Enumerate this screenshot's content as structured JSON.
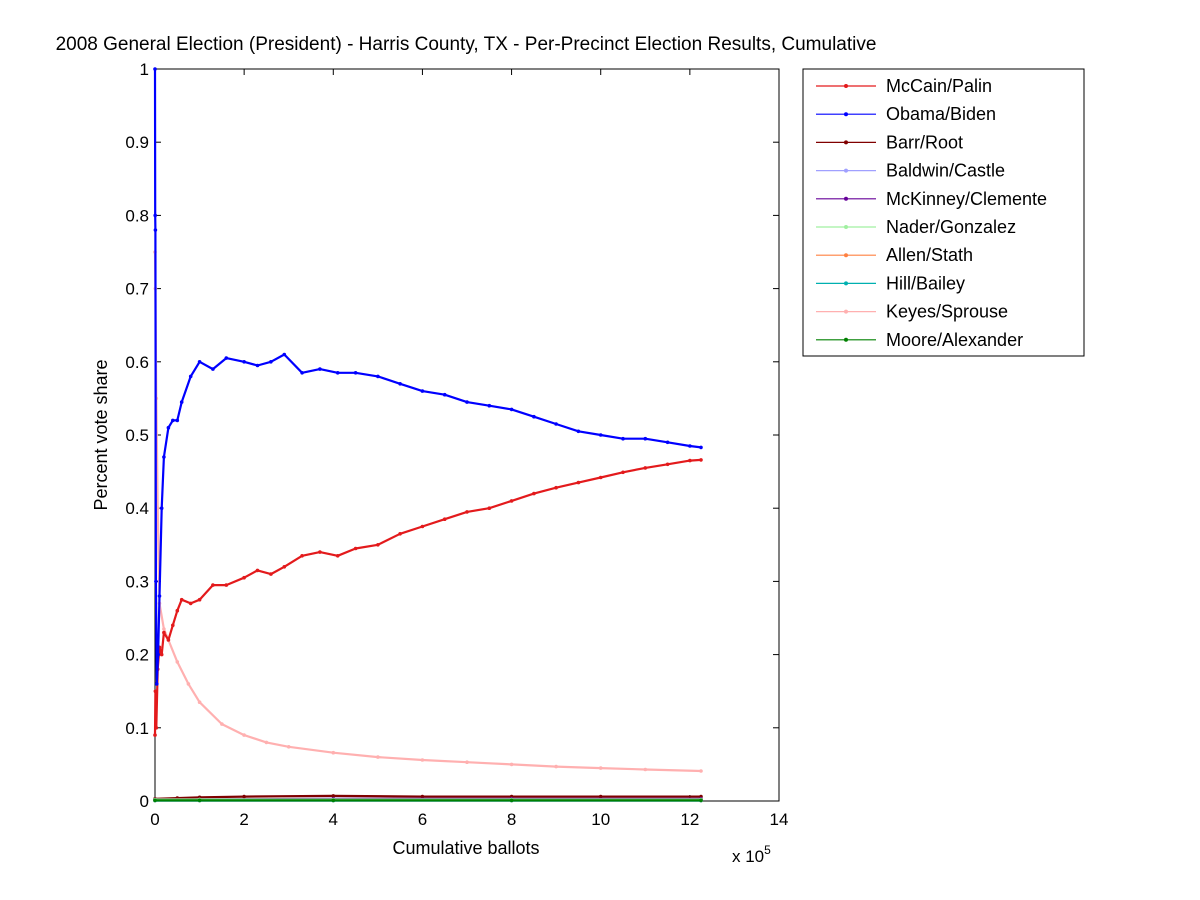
{
  "chart_data": {
    "type": "line",
    "title": "2008 General Election (President) - Harris County, TX - Per-Precinct Election Results, Cumulative",
    "xlabel": "Cumulative ballots",
    "ylabel": "Percent vote share",
    "x_exponent_label": "x 10",
    "x_exponent_power": "5",
    "xlim": [
      0,
      14
    ],
    "ylim": [
      0,
      1
    ],
    "x_ticks": [
      0,
      2,
      4,
      6,
      8,
      10,
      12,
      14
    ],
    "y_ticks": [
      0,
      0.1,
      0.2,
      0.3,
      0.4,
      0.5,
      0.6,
      0.7,
      0.8,
      0.9,
      1
    ],
    "x_tick_labels": [
      "0",
      "2",
      "4",
      "6",
      "8",
      "10",
      "12",
      "14"
    ],
    "y_tick_labels": [
      "0",
      "0.1",
      "0.2",
      "0.3",
      "0.4",
      "0.5",
      "0.6",
      "0.7",
      "0.8",
      "0.9",
      "1"
    ],
    "grid": false,
    "legend_position": "top-right outside",
    "series": [
      {
        "name": "McCain/Palin",
        "color": "#e31a1c",
        "x": [
          0,
          0.01,
          0.03,
          0.06,
          0.1,
          0.15,
          0.2,
          0.3,
          0.4,
          0.5,
          0.6,
          0.8,
          1.0,
          1.3,
          1.6,
          2.0,
          2.3,
          2.6,
          2.9,
          3.3,
          3.7,
          4.1,
          4.5,
          5.0,
          5.5,
          6.0,
          6.5,
          7.0,
          7.5,
          8.0,
          8.5,
          9.0,
          9.5,
          10.0,
          10.5,
          11.0,
          11.5,
          12.0,
          12.25
        ],
        "y": [
          0.09,
          0.15,
          0.1,
          0.18,
          0.21,
          0.2,
          0.23,
          0.22,
          0.24,
          0.26,
          0.275,
          0.27,
          0.275,
          0.295,
          0.295,
          0.305,
          0.315,
          0.31,
          0.32,
          0.335,
          0.34,
          0.335,
          0.345,
          0.35,
          0.365,
          0.375,
          0.385,
          0.395,
          0.4,
          0.41,
          0.42,
          0.428,
          0.435,
          0.442,
          0.449,
          0.455,
          0.46,
          0.465,
          0.466
        ]
      },
      {
        "name": "Obama/Biden",
        "color": "#0000ff",
        "x": [
          0,
          0.005,
          0.01,
          0.02,
          0.04,
          0.07,
          0.1,
          0.15,
          0.2,
          0.3,
          0.4,
          0.5,
          0.6,
          0.8,
          1.0,
          1.3,
          1.6,
          2.0,
          2.3,
          2.6,
          2.9,
          3.3,
          3.7,
          4.1,
          4.5,
          5.0,
          5.5,
          6.0,
          6.5,
          7.0,
          7.5,
          8.0,
          8.5,
          9.0,
          9.5,
          10.0,
          10.5,
          11.0,
          11.5,
          12.0,
          12.25
        ],
        "y": [
          1.0,
          0.8,
          0.78,
          0.3,
          0.16,
          0.2,
          0.28,
          0.4,
          0.47,
          0.51,
          0.52,
          0.52,
          0.545,
          0.58,
          0.6,
          0.59,
          0.605,
          0.6,
          0.595,
          0.6,
          0.61,
          0.585,
          0.59,
          0.585,
          0.585,
          0.58,
          0.57,
          0.56,
          0.555,
          0.545,
          0.54,
          0.535,
          0.525,
          0.515,
          0.505,
          0.5,
          0.495,
          0.495,
          0.49,
          0.485,
          0.483
        ]
      },
      {
        "name": "Barr/Root",
        "color": "#800000",
        "x": [
          0,
          0.5,
          1,
          2,
          4,
          6,
          8,
          10,
          12.25
        ],
        "y": [
          0.003,
          0.004,
          0.005,
          0.006,
          0.007,
          0.006,
          0.006,
          0.006,
          0.006
        ]
      },
      {
        "name": "Baldwin/Castle",
        "color": "#a0a0ff",
        "x": [
          0,
          1,
          4,
          8,
          12.25
        ],
        "y": [
          0.001,
          0.002,
          0.002,
          0.002,
          0.002
        ]
      },
      {
        "name": "McKinney/Clemente",
        "color": "#660099",
        "x": [
          0,
          1,
          4,
          8,
          12.25
        ],
        "y": [
          0.002,
          0.002,
          0.003,
          0.003,
          0.003
        ]
      },
      {
        "name": "Nader/Gonzalez",
        "color": "#a0f0a0",
        "x": [
          0,
          1,
          4,
          8,
          12.25
        ],
        "y": [
          0.002,
          0.002,
          0.002,
          0.002,
          0.002
        ]
      },
      {
        "name": "Allen/Stath",
        "color": "#ff8040",
        "x": [
          0,
          1,
          4,
          8,
          12.25
        ],
        "y": [
          0.0005,
          0.0005,
          0.0005,
          0.0005,
          0.0005
        ]
      },
      {
        "name": "Hill/Bailey",
        "color": "#00b0b0",
        "x": [
          0,
          1,
          4,
          8,
          12.25
        ],
        "y": [
          0.0005,
          0.0005,
          0.0005,
          0.0005,
          0.0005
        ]
      },
      {
        "name": "Keyes/Sprouse",
        "color": "#ffb0b0",
        "x": [
          0,
          0.01,
          0.03,
          0.06,
          0.1,
          0.2,
          0.3,
          0.5,
          0.75,
          1.0,
          1.5,
          2.0,
          2.5,
          3.0,
          4.0,
          5.0,
          6.0,
          7.0,
          8.0,
          9.0,
          10.0,
          11.0,
          12.25
        ],
        "y": [
          0.75,
          0.7,
          0.55,
          0.4,
          0.27,
          0.235,
          0.22,
          0.19,
          0.16,
          0.135,
          0.105,
          0.09,
          0.08,
          0.074,
          0.066,
          0.06,
          0.056,
          0.053,
          0.05,
          0.047,
          0.045,
          0.043,
          0.041
        ]
      },
      {
        "name": "Moore/Alexander",
        "color": "#008000",
        "x": [
          0,
          1,
          4,
          8,
          12.25
        ],
        "y": [
          0.001,
          0.001,
          0.001,
          0.001,
          0.001
        ]
      }
    ]
  }
}
